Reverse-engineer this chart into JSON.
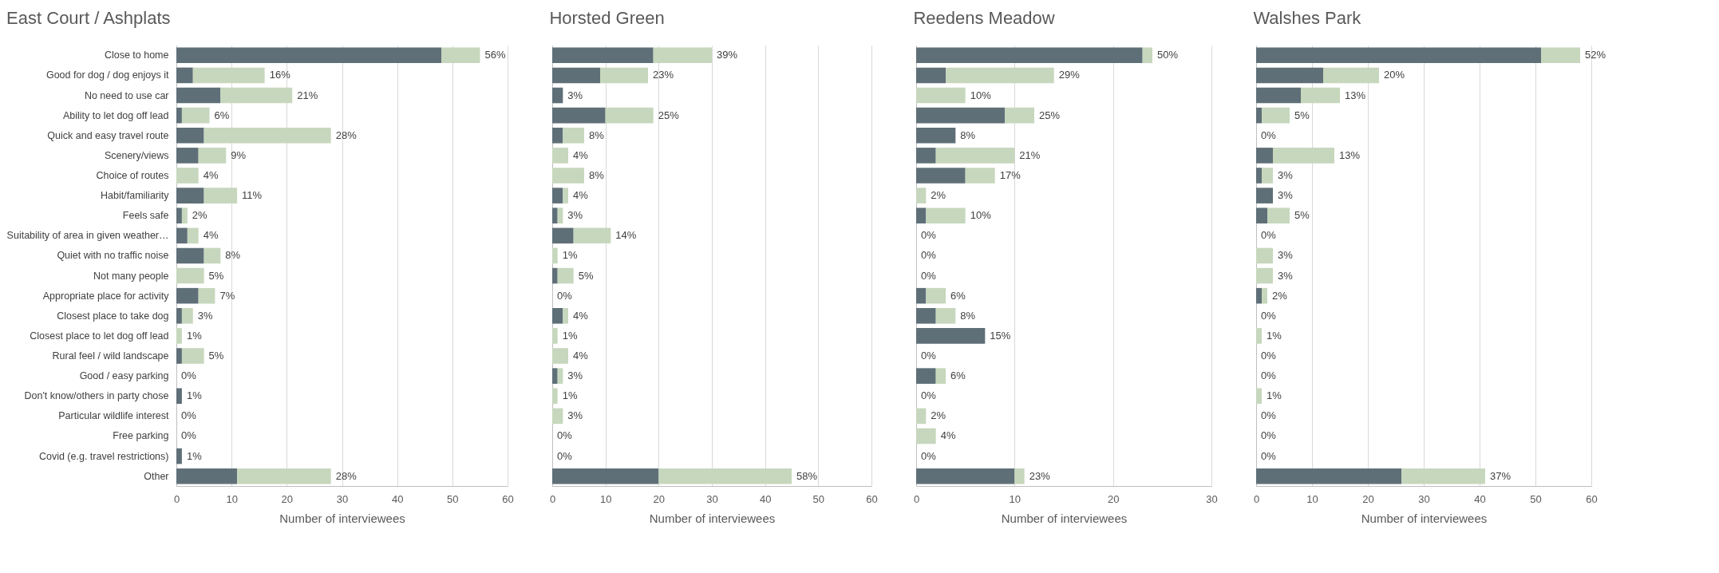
{
  "chart_data": [
    {
      "type": "bar",
      "orientation": "horizontal",
      "stacked": true,
      "title": "East Court / Ashplats",
      "xlabel": "Number of interviewees",
      "grid": "x",
      "xlim": [
        0,
        60
      ],
      "xticks": [
        0,
        10,
        20,
        30,
        40,
        50,
        60
      ],
      "categories": [
        "Close to home",
        "Good for dog / dog enjoys it",
        "No need to use car",
        "Ability to let dog off lead",
        "Quick and easy travel route",
        "Scenery/views",
        "Choice of routes",
        "Habit/familiarity",
        "Feels safe",
        "Suitability of area in given weather…",
        "Quiet with no traffic noise",
        "Not many people",
        "Appropriate place for activity",
        "Closest place to take dog",
        "Closest place to let dog off lead",
        "Rural feel / wild landscape",
        "Good / easy parking",
        "Don't know/others in party chose",
        "Particular wildlife interest",
        "Free parking",
        "Covid (e.g. travel restrictions)",
        "Other"
      ],
      "series": [
        {
          "color": "#5f6f78",
          "values": [
            48,
            3,
            8,
            1,
            5,
            4,
            0,
            5,
            1,
            2,
            5,
            0,
            4,
            1,
            0,
            1,
            0,
            1,
            0,
            0,
            1,
            11
          ]
        },
        {
          "color": "#c6d7bd",
          "values": [
            7,
            13,
            13,
            5,
            23,
            5,
            4,
            6,
            1,
            2,
            3,
            5,
            3,
            2,
            1,
            4,
            0,
            0,
            0,
            0,
            0,
            17
          ]
        }
      ],
      "annotations": [
        {
          "text": "56%",
          "x": 55,
          "y": "Close to home"
        },
        {
          "text": "16%",
          "x": 16,
          "y": "Good for dog / dog enjoys it"
        },
        {
          "text": "21%",
          "x": 21,
          "y": "No need to use car"
        },
        {
          "text": "6%",
          "x": 6,
          "y": "Ability to let dog off lead"
        },
        {
          "text": "28%",
          "x": 28,
          "y": "Quick and easy travel route"
        },
        {
          "text": "9%",
          "x": 9,
          "y": "Scenery/views"
        },
        {
          "text": "4%",
          "x": 4,
          "y": "Choice of routes"
        },
        {
          "text": "11%",
          "x": 11,
          "y": "Habit/familiarity"
        },
        {
          "text": "2%",
          "x": 2,
          "y": "Feels safe"
        },
        {
          "text": "4%",
          "x": 4,
          "y": "Suitability of area in given weather…"
        },
        {
          "text": "8%",
          "x": 8,
          "y": "Quiet with no traffic noise"
        },
        {
          "text": "5%",
          "x": 5,
          "y": "Not many people"
        },
        {
          "text": "7%",
          "x": 7,
          "y": "Appropriate place for activity"
        },
        {
          "text": "3%",
          "x": 3,
          "y": "Closest place to take dog"
        },
        {
          "text": "1%",
          "x": 1,
          "y": "Closest place to let dog off lead"
        },
        {
          "text": "5%",
          "x": 5,
          "y": "Rural feel / wild landscape"
        },
        {
          "text": "0%",
          "x": 0,
          "y": "Good / easy parking"
        },
        {
          "text": "1%",
          "x": 1,
          "y": "Don't know/others in party chose"
        },
        {
          "text": "0%",
          "x": 0,
          "y": "Particular wildlife interest"
        },
        {
          "text": "0%",
          "x": 0,
          "y": "Free parking"
        },
        {
          "text": "1%",
          "x": 1,
          "y": "Covid (e.g. travel restrictions)"
        },
        {
          "text": "28%",
          "x": 28,
          "y": "Other"
        }
      ]
    },
    {
      "type": "bar",
      "orientation": "horizontal",
      "stacked": true,
      "title": "Horsted Green",
      "xlabel": "Number of interviewees",
      "grid": "x",
      "xlim": [
        0,
        60
      ],
      "xticks": [
        0,
        10,
        20,
        30,
        40,
        50,
        60
      ],
      "tick_labels": "x",
      "categories": [
        "Close to home",
        "Good for dog / dog enjoys it",
        "No need to use car",
        "Ability to let dog off lead",
        "Quick and easy travel route",
        "Scenery/views",
        "Choice of routes",
        "Habit/familiarity",
        "Feels safe",
        "Suitability of area in given weather…",
        "Quiet with no traffic noise",
        "Not many people",
        "Appropriate place for activity",
        "Closest place to take dog",
        "Closest place to let dog off lead",
        "Rural feel / wild landscape",
        "Good / easy parking",
        "Don't know/others in party chose",
        "Particular wildlife interest",
        "Free parking",
        "Covid (e.g. travel restrictions)",
        "Other"
      ],
      "series": [
        {
          "color": "#5f6f78",
          "values": [
            19,
            9,
            2,
            10,
            2,
            0,
            0,
            2,
            1,
            4,
            0,
            1,
            0,
            2,
            0,
            0,
            1,
            0,
            0,
            0,
            0,
            20
          ]
        },
        {
          "color": "#c6d7bd",
          "values": [
            11,
            9,
            0,
            9,
            4,
            3,
            6,
            1,
            1,
            7,
            1,
            3,
            0,
            1,
            1,
            3,
            1,
            1,
            2,
            0,
            0,
            25
          ]
        }
      ],
      "annotations": [
        {
          "text": "39%",
          "x": 30,
          "y": "Close to home"
        },
        {
          "text": "23%",
          "x": 18,
          "y": "Good for dog / dog enjoys it"
        },
        {
          "text": "3%",
          "x": 2,
          "y": "No need to use car"
        },
        {
          "text": "25%",
          "x": 19,
          "y": "Ability to let dog off lead"
        },
        {
          "text": "8%",
          "x": 6,
          "y": "Quick and easy travel route"
        },
        {
          "text": "4%",
          "x": 3,
          "y": "Scenery/views"
        },
        {
          "text": "8%",
          "x": 6,
          "y": "Choice of routes"
        },
        {
          "text": "4%",
          "x": 3,
          "y": "Habit/familiarity"
        },
        {
          "text": "3%",
          "x": 2,
          "y": "Feels safe"
        },
        {
          "text": "14%",
          "x": 11,
          "y": "Suitability of area in given weather…"
        },
        {
          "text": "1%",
          "x": 1,
          "y": "Quiet with no traffic noise"
        },
        {
          "text": "5%",
          "x": 4,
          "y": "Not many people"
        },
        {
          "text": "0%",
          "x": 0,
          "y": "Appropriate place for activity"
        },
        {
          "text": "4%",
          "x": 3,
          "y": "Closest place to take dog"
        },
        {
          "text": "1%",
          "x": 1,
          "y": "Closest place to let dog off lead"
        },
        {
          "text": "4%",
          "x": 3,
          "y": "Rural feel / wild landscape"
        },
        {
          "text": "3%",
          "x": 2,
          "y": "Good / easy parking"
        },
        {
          "text": "1%",
          "x": 1,
          "y": "Don't know/others in party chose"
        },
        {
          "text": "3%",
          "x": 2,
          "y": "Particular wildlife interest"
        },
        {
          "text": "0%",
          "x": 0,
          "y": "Free parking"
        },
        {
          "text": "0%",
          "x": 0,
          "y": "Covid (e.g. travel restrictions)"
        },
        {
          "text": "58%",
          "x": 45,
          "y": "Other"
        }
      ]
    },
    {
      "type": "bar",
      "orientation": "horizontal",
      "stacked": true,
      "title": "Reedens Meadow",
      "xlabel": "Number of interviewees",
      "grid": "x",
      "xlim": [
        0,
        30
      ],
      "xticks": [
        0,
        10,
        20,
        30
      ],
      "tick_labels": "x",
      "categories": [
        "Close to home",
        "Good for dog / dog enjoys it",
        "No need to use car",
        "Ability to let dog off lead",
        "Quick and easy travel route",
        "Scenery/views",
        "Choice of routes",
        "Habit/familiarity",
        "Feels safe",
        "Suitability of area in given weather…",
        "Quiet with no traffic noise",
        "Not many people",
        "Appropriate place for activity",
        "Closest place to take dog",
        "Closest place to let dog off lead",
        "Rural feel / wild landscape",
        "Good / easy parking",
        "Don't know/others in party chose",
        "Particular wildlife interest",
        "Free parking",
        "Covid (e.g. travel restrictions)",
        "Other"
      ],
      "series": [
        {
          "color": "#5f6f78",
          "values": [
            23,
            3,
            0,
            9,
            4,
            2,
            5,
            0,
            1,
            0,
            0,
            0,
            1,
            2,
            7,
            0,
            2,
            0,
            0,
            0,
            0,
            10
          ]
        },
        {
          "color": "#c6d7bd",
          "values": [
            1,
            11,
            5,
            3,
            0,
            8,
            3,
            1,
            4,
            0,
            0,
            0,
            2,
            2,
            0,
            0,
            1,
            0,
            1,
            2,
            0,
            1
          ]
        }
      ],
      "annotations": [
        {
          "text": "50%",
          "x": 24,
          "y": "Close to home"
        },
        {
          "text": "29%",
          "x": 14,
          "y": "Good for dog / dog enjoys it"
        },
        {
          "text": "10%",
          "x": 5,
          "y": "No need to use car"
        },
        {
          "text": "25%",
          "x": 12,
          "y": "Ability to let dog off lead"
        },
        {
          "text": "8%",
          "x": 4,
          "y": "Quick and easy travel route"
        },
        {
          "text": "21%",
          "x": 10,
          "y": "Scenery/views"
        },
        {
          "text": "17%",
          "x": 8,
          "y": "Choice of routes"
        },
        {
          "text": "2%",
          "x": 1,
          "y": "Habit/familiarity"
        },
        {
          "text": "10%",
          "x": 5,
          "y": "Feels safe"
        },
        {
          "text": "0%",
          "x": 0,
          "y": "Suitability of area in given weather…"
        },
        {
          "text": "0%",
          "x": 0,
          "y": "Quiet with no traffic noise"
        },
        {
          "text": "0%",
          "x": 0,
          "y": "Not many people"
        },
        {
          "text": "6%",
          "x": 3,
          "y": "Appropriate place for activity"
        },
        {
          "text": "8%",
          "x": 4,
          "y": "Closest place to take dog"
        },
        {
          "text": "15%",
          "x": 7,
          "y": "Closest place to let dog off lead"
        },
        {
          "text": "0%",
          "x": 0,
          "y": "Rural feel / wild landscape"
        },
        {
          "text": "6%",
          "x": 3,
          "y": "Good / easy parking"
        },
        {
          "text": "0%",
          "x": 0,
          "y": "Don't know/others in party chose"
        },
        {
          "text": "2%",
          "x": 1,
          "y": "Particular wildlife interest"
        },
        {
          "text": "4%",
          "x": 2,
          "y": "Free parking"
        },
        {
          "text": "0%",
          "x": 0,
          "y": "Covid (e.g. travel restrictions)"
        },
        {
          "text": "23%",
          "x": 11,
          "y": "Other"
        }
      ]
    },
    {
      "type": "bar",
      "orientation": "horizontal",
      "stacked": true,
      "title": "Walshes Park",
      "xlabel": "Number of interviewees",
      "grid": "x",
      "xlim": [
        0,
        60
      ],
      "xticks": [
        0,
        10,
        20,
        30,
        40,
        50,
        60
      ],
      "tick_labels": "x",
      "categories": [
        "Close to home",
        "Good for dog / dog enjoys it",
        "No need to use car",
        "Ability to let dog off lead",
        "Quick and easy travel route",
        "Scenery/views",
        "Choice of routes",
        "Habit/familiarity",
        "Feels safe",
        "Suitability of area in given weather…",
        "Quiet with no traffic noise",
        "Not many people",
        "Appropriate place for activity",
        "Closest place to take dog",
        "Closest place to let dog off lead",
        "Rural feel / wild landscape",
        "Good / easy parking",
        "Don't know/others in party chose",
        "Particular wildlife interest",
        "Free parking",
        "Covid (e.g. travel restrictions)",
        "Other"
      ],
      "series": [
        {
          "color": "#5f6f78",
          "values": [
            51,
            12,
            8,
            1,
            0,
            3,
            1,
            3,
            2,
            0,
            0,
            0,
            1,
            0,
            0,
            0,
            0,
            0,
            0,
            0,
            0,
            26
          ]
        },
        {
          "color": "#c6d7bd",
          "values": [
            7,
            10,
            7,
            5,
            0,
            11,
            2,
            0,
            4,
            0,
            3,
            3,
            1,
            0,
            1,
            0,
            0,
            1,
            0,
            0,
            0,
            15
          ]
        }
      ],
      "annotations": [
        {
          "text": "52%",
          "x": 58,
          "y": "Close to home"
        },
        {
          "text": "20%",
          "x": 22,
          "y": "Good for dog / dog enjoys it"
        },
        {
          "text": "13%",
          "x": 15,
          "y": "No need to use car"
        },
        {
          "text": "5%",
          "x": 6,
          "y": "Ability to let dog off lead"
        },
        {
          "text": "0%",
          "x": 0,
          "y": "Quick and easy travel route"
        },
        {
          "text": "13%",
          "x": 14,
          "y": "Scenery/views"
        },
        {
          "text": "3%",
          "x": 3,
          "y": "Choice of routes"
        },
        {
          "text": "3%",
          "x": 3,
          "y": "Habit/familiarity"
        },
        {
          "text": "5%",
          "x": 6,
          "y": "Feels safe"
        },
        {
          "text": "0%",
          "x": 0,
          "y": "Suitability of area in given weather…"
        },
        {
          "text": "3%",
          "x": 3,
          "y": "Quiet with no traffic noise"
        },
        {
          "text": "3%",
          "x": 3,
          "y": "Not many people"
        },
        {
          "text": "2%",
          "x": 2,
          "y": "Appropriate place for activity"
        },
        {
          "text": "0%",
          "x": 0,
          "y": "Closest place to take dog"
        },
        {
          "text": "1%",
          "x": 1,
          "y": "Closest place to let dog off lead"
        },
        {
          "text": "0%",
          "x": 0,
          "y": "Rural feel / wild landscape"
        },
        {
          "text": "0%",
          "x": 0,
          "y": "Good / easy parking"
        },
        {
          "text": "1%",
          "x": 1,
          "y": "Don't know/others in party chose"
        },
        {
          "text": "0%",
          "x": 0,
          "y": "Particular wildlife interest"
        },
        {
          "text": "0%",
          "x": 0,
          "y": "Free parking"
        },
        {
          "text": "0%",
          "x": 0,
          "y": "Covid (e.g. travel restrictions)"
        },
        {
          "text": "37%",
          "x": 41,
          "y": "Other"
        }
      ]
    }
  ]
}
